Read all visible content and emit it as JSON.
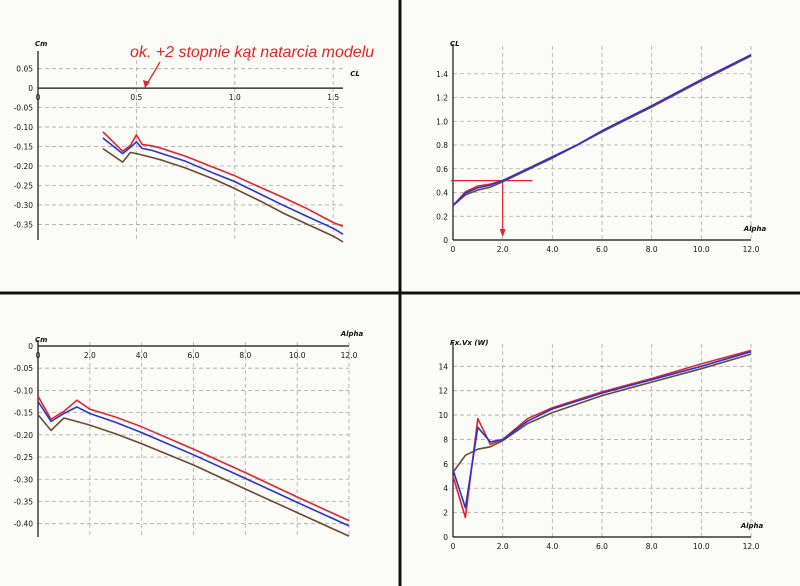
{
  "colors": {
    "red": "#e3242b",
    "blue": "#2833d4",
    "brown": "#6b4a34",
    "guide": "#e3242b"
  },
  "chart_data": [
    {
      "id": "cm-vs-cl",
      "type": "line",
      "xlabel": "CL",
      "ylabel": "Cm",
      "xlim": [
        0,
        1.55
      ],
      "ylim": [
        -0.39,
        0.08
      ],
      "x_ticks": [
        0,
        0.5,
        1.0,
        1.5
      ],
      "x_tick_labels": [
        "0",
        "0.5",
        "1.0",
        "1.5"
      ],
      "y_ticks": [
        0.05,
        0,
        -0.05,
        -0.1,
        -0.15,
        -0.2,
        -0.25,
        -0.3,
        -0.35
      ],
      "y_tick_labels": [
        "0.05",
        "0",
        "-0.05",
        "-0.10",
        "-0.15",
        "-0.20",
        "-0.25",
        "-0.30",
        "-0.35"
      ],
      "grid": true,
      "series": [
        {
          "color": "red",
          "x": [
            0.33,
            0.43,
            0.47,
            0.5,
            0.53,
            0.58,
            0.63,
            0.75,
            0.9,
            1.0,
            1.13,
            1.25,
            1.37,
            1.5,
            1.55
          ],
          "y": [
            -0.112,
            -0.162,
            -0.147,
            -0.12,
            -0.145,
            -0.148,
            -0.155,
            -0.175,
            -0.205,
            -0.225,
            -0.255,
            -0.282,
            -0.31,
            -0.345,
            -0.355
          ]
        },
        {
          "color": "blue",
          "x": [
            0.33,
            0.43,
            0.47,
            0.5,
            0.53,
            0.58,
            0.63,
            0.75,
            0.9,
            1.0,
            1.13,
            1.25,
            1.37,
            1.5,
            1.55
          ],
          "y": [
            -0.128,
            -0.168,
            -0.152,
            -0.138,
            -0.155,
            -0.16,
            -0.168,
            -0.188,
            -0.22,
            -0.24,
            -0.272,
            -0.302,
            -0.33,
            -0.36,
            -0.375
          ]
        },
        {
          "color": "brown",
          "x": [
            0.33,
            0.43,
            0.47,
            0.5,
            0.58,
            0.63,
            0.75,
            0.9,
            1.0,
            1.13,
            1.25,
            1.37,
            1.5,
            1.55
          ],
          "y": [
            -0.155,
            -0.19,
            -0.165,
            -0.168,
            -0.178,
            -0.185,
            -0.205,
            -0.235,
            -0.258,
            -0.29,
            -0.322,
            -0.35,
            -0.38,
            -0.395
          ]
        }
      ]
    },
    {
      "id": "cl-vs-alpha",
      "type": "line",
      "xlabel": "Alpha",
      "ylabel": "CL",
      "xlim": [
        0,
        12
      ],
      "ylim": [
        0,
        1.6
      ],
      "x_ticks": [
        0,
        2,
        4,
        6,
        8,
        10,
        12
      ],
      "x_tick_labels": [
        "0",
        "2.0",
        "4.0",
        "6.0",
        "8.0",
        "10.0",
        "12.0"
      ],
      "y_ticks": [
        0,
        0.2,
        0.4,
        0.6,
        0.8,
        1.0,
        1.2,
        1.4
      ],
      "y_tick_labels": [
        "0",
        "0.2",
        "0.4",
        "0.6",
        "0.8",
        "1.0",
        "1.2",
        "1.4"
      ],
      "grid": true,
      "guide": {
        "alpha": 2.0,
        "cl": 0.5
      },
      "series": [
        {
          "color": "red",
          "x": [
            0,
            0.5,
            1.0,
            1.5,
            2.0,
            3.0,
            4.0,
            5.0,
            6.0,
            8.0,
            10.0,
            12.0
          ],
          "y": [
            0.29,
            0.405,
            0.455,
            0.47,
            0.5,
            0.6,
            0.7,
            0.8,
            0.92,
            1.13,
            1.35,
            1.56
          ]
        },
        {
          "color": "blue",
          "x": [
            0,
            0.5,
            1.0,
            1.5,
            2.0,
            3.0,
            4.0,
            5.0,
            6.0,
            8.0,
            10.0,
            12.0
          ],
          "y": [
            0.29,
            0.395,
            0.44,
            0.462,
            0.5,
            0.6,
            0.7,
            0.8,
            0.92,
            1.13,
            1.35,
            1.56
          ]
        },
        {
          "color": "brown",
          "x": [
            0,
            0.5,
            1.0,
            1.5,
            2.0,
            3.0,
            4.0,
            5.0,
            6.0,
            8.0,
            10.0,
            12.0
          ],
          "y": [
            0.29,
            0.38,
            0.42,
            0.445,
            0.49,
            0.59,
            0.69,
            0.8,
            0.91,
            1.12,
            1.34,
            1.55
          ]
        }
      ]
    },
    {
      "id": "cm-vs-alpha",
      "type": "line",
      "xlabel": "Alpha",
      "ylabel": "Cm",
      "xlim": [
        0,
        12
      ],
      "ylim": [
        -0.43,
        0.0
      ],
      "x_ticks": [
        0,
        2,
        4,
        6,
        8,
        10,
        12
      ],
      "x_tick_labels": [
        "0",
        "2.0",
        "4.0",
        "6.0",
        "8.0",
        "10.0",
        "12.0"
      ],
      "y_ticks": [
        0,
        -0.05,
        -0.1,
        -0.15,
        -0.2,
        -0.25,
        -0.3,
        -0.35,
        -0.4
      ],
      "y_tick_labels": [
        "0",
        "-0.05",
        "-0.10",
        "-0.15",
        "-0.20",
        "-0.25",
        "-0.30",
        "-0.35",
        "-0.40"
      ],
      "grid": true,
      "series": [
        {
          "color": "red",
          "x": [
            0,
            0.5,
            1.0,
            1.5,
            2.0,
            3.0,
            4.0,
            6.0,
            8.0,
            10.0,
            12.0
          ],
          "y": [
            -0.113,
            -0.165,
            -0.147,
            -0.122,
            -0.142,
            -0.16,
            -0.182,
            -0.232,
            -0.285,
            -0.34,
            -0.393
          ]
        },
        {
          "color": "blue",
          "x": [
            0,
            0.5,
            1.0,
            1.5,
            2.0,
            3.0,
            4.0,
            6.0,
            8.0,
            10.0,
            12.0
          ],
          "y": [
            -0.125,
            -0.17,
            -0.152,
            -0.137,
            -0.152,
            -0.172,
            -0.195,
            -0.245,
            -0.298,
            -0.352,
            -0.405
          ]
        },
        {
          "color": "brown",
          "x": [
            0,
            0.5,
            1.0,
            1.5,
            2.0,
            3.0,
            4.0,
            6.0,
            8.0,
            10.0,
            12.0
          ],
          "y": [
            -0.155,
            -0.19,
            -0.162,
            -0.17,
            -0.178,
            -0.198,
            -0.22,
            -0.268,
            -0.322,
            -0.375,
            -0.428
          ]
        }
      ]
    },
    {
      "id": "fxvx-vs-alpha",
      "type": "line",
      "xlabel": "Alpha",
      "ylabel": "Fx.Vx (W)",
      "xlim": [
        0,
        12
      ],
      "ylim": [
        0,
        15.5
      ],
      "x_ticks": [
        0,
        2,
        4,
        6,
        8,
        10,
        12
      ],
      "x_tick_labels": [
        "0",
        "2.0",
        "4.0",
        "6.0",
        "8.0",
        "10.0",
        "12.0"
      ],
      "y_ticks": [
        0,
        2,
        4,
        6,
        8,
        10,
        12,
        14
      ],
      "y_tick_labels": [
        "0",
        "2",
        "4",
        "6",
        "8",
        "10",
        "12",
        "14"
      ],
      "grid": true,
      "series": [
        {
          "color": "red",
          "x": [
            0,
            0.5,
            1.0,
            1.5,
            2.0,
            3.0,
            4.0,
            6.0,
            8.0,
            10.0,
            12.0
          ],
          "y": [
            5.0,
            1.6,
            9.7,
            7.6,
            8.0,
            9.7,
            10.6,
            11.9,
            13.0,
            14.2,
            15.3
          ]
        },
        {
          "color": "blue",
          "x": [
            0,
            0.5,
            1.0,
            1.5,
            2.0,
            3.0,
            4.0,
            6.0,
            8.0,
            10.0,
            12.0
          ],
          "y": [
            5.5,
            2.4,
            9.0,
            7.8,
            8.0,
            9.5,
            10.5,
            11.8,
            12.9,
            14.0,
            15.2
          ]
        },
        {
          "color": "brown",
          "x": [
            0,
            0.5,
            1.0,
            1.5,
            2.0,
            3.0,
            4.0,
            6.0,
            8.0,
            10.0,
            12.0
          ],
          "y": [
            5.3,
            6.7,
            7.2,
            7.4,
            7.9,
            9.3,
            10.2,
            11.6,
            12.7,
            13.8,
            15.0
          ]
        }
      ]
    }
  ],
  "annotation": {
    "text": "ok. +2 stopnie kąt natarcia modelu"
  }
}
